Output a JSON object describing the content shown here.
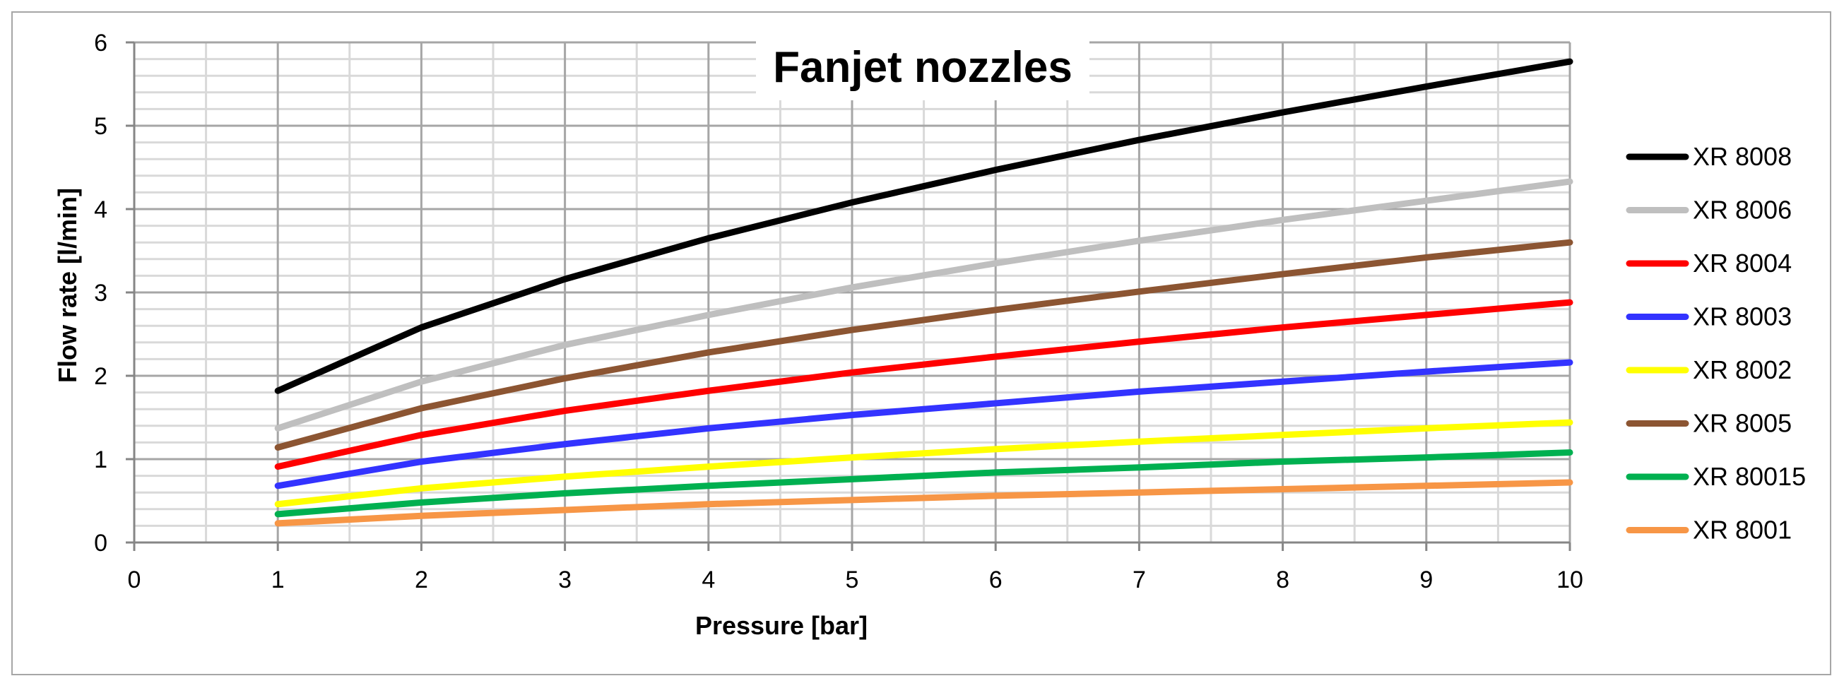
{
  "chart_data": {
    "type": "line",
    "title": "Fanjet nozzles",
    "xlabel": "Pressure [bar]",
    "ylabel": "Flow rate [l/min]",
    "xlim": [
      0,
      10
    ],
    "ylim": [
      0,
      6
    ],
    "x_ticks": [
      "0",
      "1",
      "2",
      "3",
      "4",
      "5",
      "6",
      "7",
      "8",
      "9",
      "10"
    ],
    "y_ticks": [
      "0",
      "1",
      "2",
      "3",
      "4",
      "5",
      "6"
    ],
    "grid": true,
    "legend_position": "right",
    "x": [
      1,
      2,
      3,
      4,
      5,
      6,
      7,
      8,
      9,
      10
    ],
    "series": [
      {
        "name": "XR 8008",
        "color": "#000000",
        "values": [
          1.82,
          2.58,
          3.16,
          3.65,
          4.08,
          4.47,
          4.83,
          5.16,
          5.47,
          5.77
        ]
      },
      {
        "name": "XR 8006",
        "color": "#bfbfbf",
        "values": [
          1.37,
          1.93,
          2.37,
          2.73,
          3.06,
          3.35,
          3.62,
          3.87,
          4.1,
          4.33
        ]
      },
      {
        "name": "XR 8004",
        "color": "#ff0000",
        "values": [
          0.91,
          1.29,
          1.58,
          1.82,
          2.04,
          2.23,
          2.41,
          2.58,
          2.73,
          2.88
        ]
      },
      {
        "name": "XR 8003",
        "color": "#3333ff",
        "values": [
          0.68,
          0.97,
          1.18,
          1.37,
          1.53,
          1.67,
          1.81,
          1.93,
          2.05,
          2.16
        ]
      },
      {
        "name": "XR 8002",
        "color": "#ffff00",
        "values": [
          0.46,
          0.65,
          0.79,
          0.91,
          1.02,
          1.12,
          1.21,
          1.29,
          1.37,
          1.44
        ]
      },
      {
        "name": "XR 8005",
        "color": "#8c5532",
        "values": [
          1.14,
          1.61,
          1.97,
          2.28,
          2.55,
          2.79,
          3.01,
          3.22,
          3.42,
          3.6
        ]
      },
      {
        "name": "XR 80015",
        "color": "#00b050",
        "values": [
          0.34,
          0.48,
          0.59,
          0.68,
          0.76,
          0.84,
          0.9,
          0.97,
          1.02,
          1.08
        ]
      },
      {
        "name": "XR 8001",
        "color": "#f79646",
        "values": [
          0.23,
          0.32,
          0.39,
          0.46,
          0.51,
          0.56,
          0.6,
          0.64,
          0.68,
          0.72
        ]
      }
    ]
  }
}
